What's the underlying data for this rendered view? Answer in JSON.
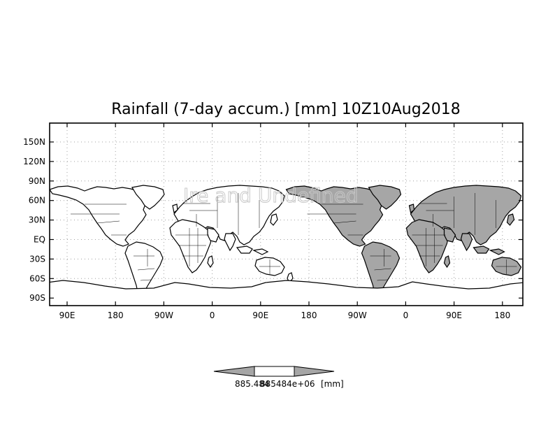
{
  "map": {
    "title": "Rainfall (7-day accum.) [mm] 10Z10Aug2018",
    "watermark": "Ire and Undefined",
    "lat_labels": [
      "150N",
      "120N",
      "90N",
      "60N",
      "30N",
      "EQ",
      "30S",
      "60S",
      "90S"
    ],
    "lon_labels": [
      "90E",
      "180",
      "90W",
      "0",
      "90E",
      "180",
      "90W",
      "0",
      "90E",
      "180"
    ],
    "grid": true,
    "colors": {
      "land": "#ffffff",
      "shaded_land": "#a6a6a6",
      "outline": "#000000",
      "grid": "#a0a0a0"
    }
  },
  "colorbar": {
    "value_label": "885.484",
    "overlap_label": "885484e+06",
    "unit_label": "[mm]",
    "colors": {
      "arrow": "#a6a6a6",
      "center": "#ffffff"
    }
  }
}
